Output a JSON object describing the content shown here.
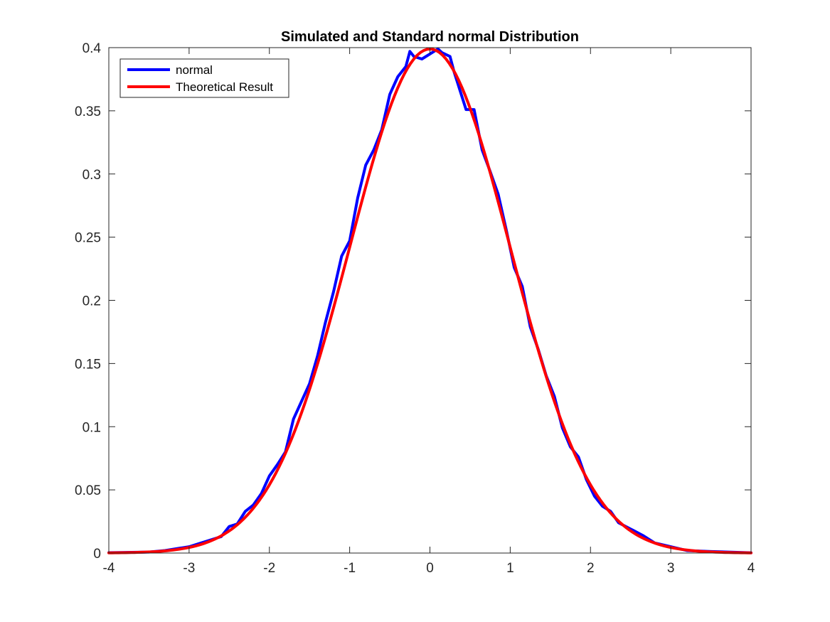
{
  "chart_data": {
    "type": "line",
    "title": "Simulated and Standard normal Distribution",
    "xlabel": "",
    "ylabel": "",
    "xlim": [
      -4,
      4
    ],
    "ylim": [
      0,
      0.4
    ],
    "xticks": [
      -4,
      -3,
      -2,
      -1,
      0,
      1,
      2,
      3,
      4
    ],
    "xtick_labels": [
      "-4",
      "-3",
      "-2",
      "-1",
      "0",
      "1",
      "2",
      "3",
      "4"
    ],
    "yticks": [
      0,
      0.05,
      0.1,
      0.15,
      0.2,
      0.25,
      0.3,
      0.35,
      0.4
    ],
    "ytick_labels": [
      "0",
      "0.05",
      "0.1",
      "0.15",
      "0.2",
      "0.25",
      "0.3",
      "0.35",
      "0.4"
    ],
    "grid": false,
    "legend_position": "top-left",
    "series": [
      {
        "name": "normal",
        "color": "#0000ff",
        "x": [
          -4.0,
          -3.5,
          -3.3,
          -3.0,
          -2.8,
          -2.6,
          -2.5,
          -2.4,
          -2.3,
          -2.2,
          -2.1,
          -2.0,
          -1.9,
          -1.8,
          -1.7,
          -1.6,
          -1.5,
          -1.4,
          -1.3,
          -1.2,
          -1.1,
          -1.0,
          -0.9,
          -0.8,
          -0.7,
          -0.6,
          -0.5,
          -0.4,
          -0.3,
          -0.25,
          -0.2,
          -0.1,
          0.0,
          0.1,
          0.15,
          0.25,
          0.3,
          0.35,
          0.45,
          0.55,
          0.65,
          0.75,
          0.85,
          0.95,
          1.05,
          1.15,
          1.25,
          1.35,
          1.45,
          1.55,
          1.65,
          1.75,
          1.85,
          1.95,
          2.05,
          2.15,
          2.25,
          2.35,
          2.5,
          2.65,
          2.8,
          3.0,
          3.2,
          3.5,
          4.0
        ],
        "y": [
          0.0003,
          0.0008,
          0.002,
          0.005,
          0.009,
          0.013,
          0.021,
          0.023,
          0.033,
          0.038,
          0.047,
          0.061,
          0.07,
          0.08,
          0.106,
          0.12,
          0.134,
          0.156,
          0.183,
          0.207,
          0.235,
          0.247,
          0.281,
          0.307,
          0.319,
          0.335,
          0.363,
          0.377,
          0.385,
          0.397,
          0.393,
          0.391,
          0.395,
          0.399,
          0.396,
          0.393,
          0.381,
          0.371,
          0.351,
          0.351,
          0.319,
          0.302,
          0.284,
          0.256,
          0.226,
          0.211,
          0.179,
          0.161,
          0.14,
          0.124,
          0.099,
          0.084,
          0.076,
          0.058,
          0.045,
          0.037,
          0.033,
          0.024,
          0.019,
          0.014,
          0.008,
          0.005,
          0.002,
          0.0012,
          0.0002
        ]
      },
      {
        "name": "Theoretical Result",
        "color": "#ff0000",
        "function": "standard-normal-pdf",
        "x_range": [
          -4,
          4
        ]
      }
    ]
  }
}
